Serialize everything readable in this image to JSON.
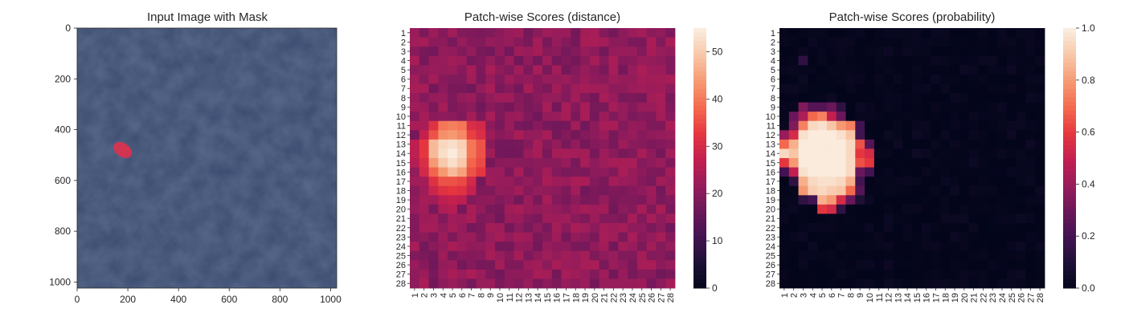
{
  "chart_data": [
    {
      "type": "image",
      "title": "Input Image with Mask",
      "xticks": [
        0,
        200,
        400,
        600,
        800,
        1000
      ],
      "yticks": [
        0,
        200,
        400,
        600,
        800,
        1000
      ],
      "xlim": [
        0,
        1024
      ],
      "ylim": [
        1024,
        0
      ],
      "mask_region": {
        "x_range": [
          140,
          220
        ],
        "y_range": [
          445,
          515
        ]
      },
      "colors": {
        "background": "#3a4a6e",
        "mask": "#d8334f"
      }
    },
    {
      "type": "heatmap",
      "title": "Patch-wise Scores (distance)",
      "rows": 28,
      "cols": 28,
      "colorbar": {
        "min": 0,
        "max": 55,
        "ticks": [
          0,
          10,
          20,
          30,
          40,
          50
        ]
      },
      "colormap": "rocket",
      "baseline": 21,
      "hotspot_values": {
        "11": {
          "3": 32,
          "4": 40,
          "5": 41,
          "6": 40,
          "7": 31,
          "8": 30
        },
        "12": {
          "2": 28,
          "3": 36,
          "4": 43,
          "5": 44,
          "6": 42,
          "7": 34,
          "8": 31
        },
        "13": {
          "1": 27,
          "2": 33,
          "3": 48,
          "4": 52,
          "5": 53,
          "6": 51,
          "7": 40,
          "8": 36
        },
        "14": {
          "1": 27,
          "2": 33,
          "3": 48,
          "4": 53,
          "5": 55,
          "6": 52,
          "7": 40,
          "8": 36
        },
        "15": {
          "1": 26,
          "2": 31,
          "3": 44,
          "4": 50,
          "5": 53,
          "6": 50,
          "7": 38,
          "8": 35
        },
        "16": {
          "2": 30,
          "3": 38,
          "4": 44,
          "5": 48,
          "6": 45,
          "7": 36,
          "8": 33
        },
        "17": {
          "3": 32,
          "4": 36,
          "5": 36,
          "6": 35,
          "7": 30
        },
        "18": {
          "3": 29,
          "4": 32,
          "5": 33,
          "6": 32,
          "7": 28
        },
        "19": {
          "4": 27,
          "5": 28,
          "6": 27
        },
        "20": {
          "4": 25,
          "5": 26
        }
      }
    },
    {
      "type": "heatmap",
      "title": "Patch-wise Scores (probability)",
      "rows": 28,
      "cols": 28,
      "colorbar": {
        "min": 0.0,
        "max": 1.0,
        "ticks": [
          "0.0",
          "0.2",
          "0.4",
          "0.6",
          "0.8",
          "1.0"
        ]
      },
      "colormap": "rocket",
      "baseline": 0.02,
      "hotspot_values": {
        "4": {
          "3": 0.15
        },
        "9": {
          "3": 0.35,
          "4": 0.25,
          "5": 0.25,
          "6": 0.3,
          "7": 0.15
        },
        "10": {
          "2": 0.3,
          "3": 0.45,
          "4": 0.7,
          "5": 0.75,
          "6": 0.5,
          "7": 0.3
        },
        "11": {
          "2": 0.35,
          "3": 0.75,
          "4": 0.95,
          "5": 0.97,
          "6": 0.9,
          "7": 0.8,
          "8": 0.75,
          "9": 0.2
        },
        "12": {
          "1": 0.4,
          "2": 0.55,
          "3": 0.97,
          "4": 1.0,
          "5": 1.0,
          "6": 1.0,
          "7": 0.97,
          "8": 0.9,
          "9": 0.2
        },
        "13": {
          "1": 0.7,
          "2": 0.85,
          "3": 1.0,
          "4": 1.0,
          "5": 1.0,
          "6": 1.0,
          "7": 1.0,
          "8": 0.95,
          "9": 0.65,
          "10": 0.25
        },
        "14": {
          "1": 0.95,
          "2": 0.9,
          "3": 1.0,
          "4": 1.0,
          "5": 1.0,
          "6": 1.0,
          "7": 1.0,
          "8": 0.95,
          "9": 0.6,
          "10": 0.55
        },
        "15": {
          "1": 0.6,
          "2": 0.8,
          "3": 1.0,
          "4": 1.0,
          "5": 1.0,
          "6": 1.0,
          "7": 1.0,
          "8": 0.95,
          "9": 0.65,
          "10": 0.6
        },
        "16": {
          "1": 0.2,
          "2": 0.5,
          "3": 0.97,
          "4": 1.0,
          "5": 1.0,
          "6": 1.0,
          "7": 1.0,
          "8": 0.95,
          "9": 0.3,
          "10": 0.2
        },
        "17": {
          "2": 0.15,
          "3": 0.85,
          "4": 0.95,
          "5": 0.97,
          "6": 0.97,
          "7": 0.95,
          "8": 0.85,
          "9": 0.2
        },
        "18": {
          "3": 0.8,
          "4": 0.92,
          "5": 0.95,
          "6": 0.92,
          "7": 0.9,
          "8": 0.7,
          "9": 0.25
        },
        "19": {
          "3": 0.15,
          "4": 0.2,
          "5": 0.85,
          "6": 0.8,
          "7": 0.55,
          "8": 0.3,
          "9": 0.1
        },
        "20": {
          "5": 0.6,
          "6": 0.55,
          "7": 0.15
        }
      }
    }
  ]
}
